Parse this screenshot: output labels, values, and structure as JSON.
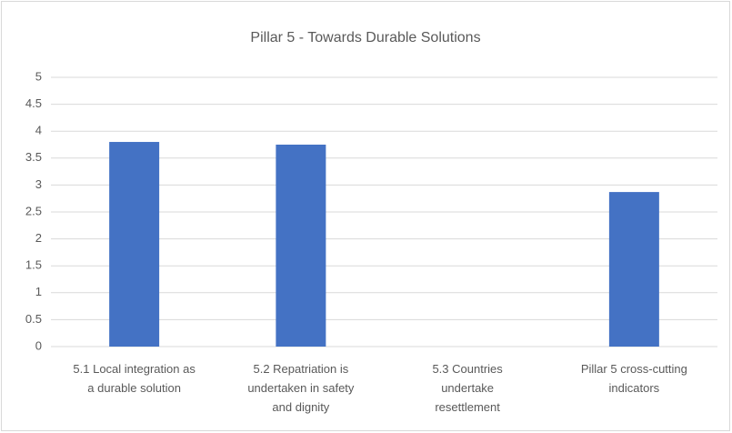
{
  "chart_data": {
    "type": "bar",
    "title": "Pillar 5 - Towards Durable Solutions",
    "categories": [
      "5.1 Local integration as\na durable solution",
      "5.2 Repatriation is\nundertaken in safety\nand dignity",
      "5.3 Countries\nundertake\nresettlement",
      "Pillar 5 cross-cutting\nindicators"
    ],
    "values": [
      3.8,
      3.75,
      0,
      2.87
    ],
    "color": "#4472c4",
    "ylim": [
      0,
      5
    ],
    "yticks": [
      0,
      0.5,
      1,
      1.5,
      2,
      2.5,
      3,
      3.5,
      4,
      4.5,
      5
    ],
    "grid": true
  }
}
